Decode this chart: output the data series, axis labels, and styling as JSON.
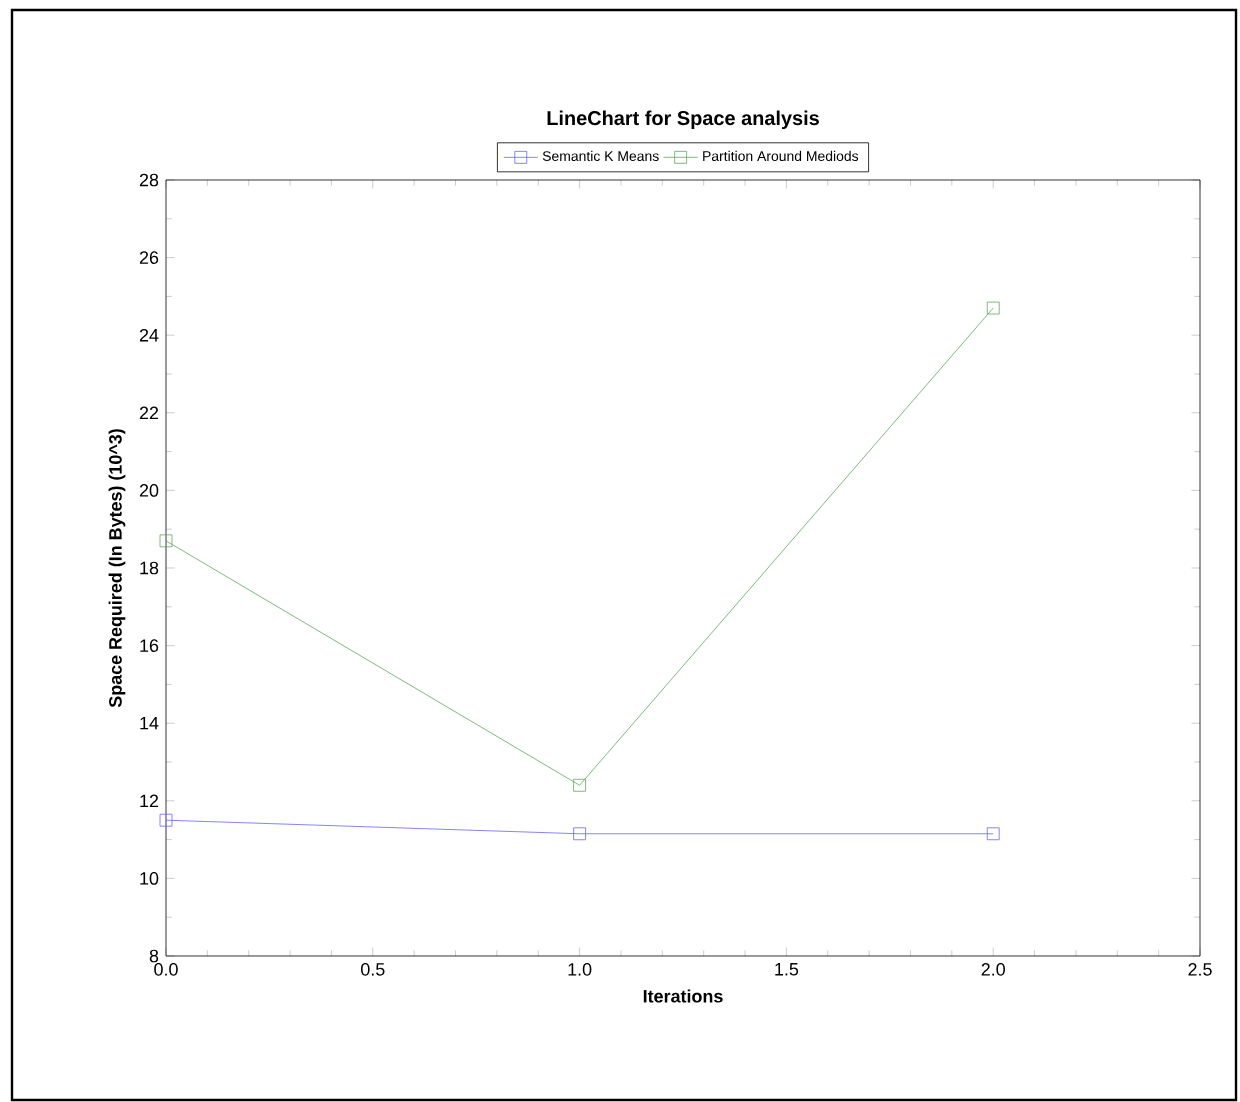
{
  "chart_data": {
    "type": "line",
    "title": "LineChart for Space analysis",
    "xlabel": "Iterations",
    "ylabel": "Space Required (In Bytes) (10^3)",
    "x": [
      0,
      1,
      2
    ],
    "series": [
      {
        "name": "Semantic K Means",
        "color": "#6666ff",
        "values": [
          11.5,
          11.15,
          11.15
        ]
      },
      {
        "name": "Partition Around Mediods",
        "color": "#5fa85f",
        "values": [
          18.7,
          12.4,
          24.7
        ]
      }
    ],
    "xlim": [
      0,
      2.5
    ],
    "ylim": [
      8,
      28
    ],
    "xticks": [
      {
        "value": 0,
        "label": "0.0"
      },
      {
        "value": 0.5,
        "label": "0.5"
      },
      {
        "value": 1,
        "label": "1.0"
      },
      {
        "value": 1.5,
        "label": "1.5"
      },
      {
        "value": 2,
        "label": "2.0"
      },
      {
        "value": 2.5,
        "label": "2.5"
      }
    ],
    "yticks": [
      8,
      10,
      12,
      14,
      16,
      18,
      20,
      22,
      24,
      26,
      28
    ],
    "legend": "top",
    "marker": "square",
    "line_style": "solid",
    "grid": false
  }
}
